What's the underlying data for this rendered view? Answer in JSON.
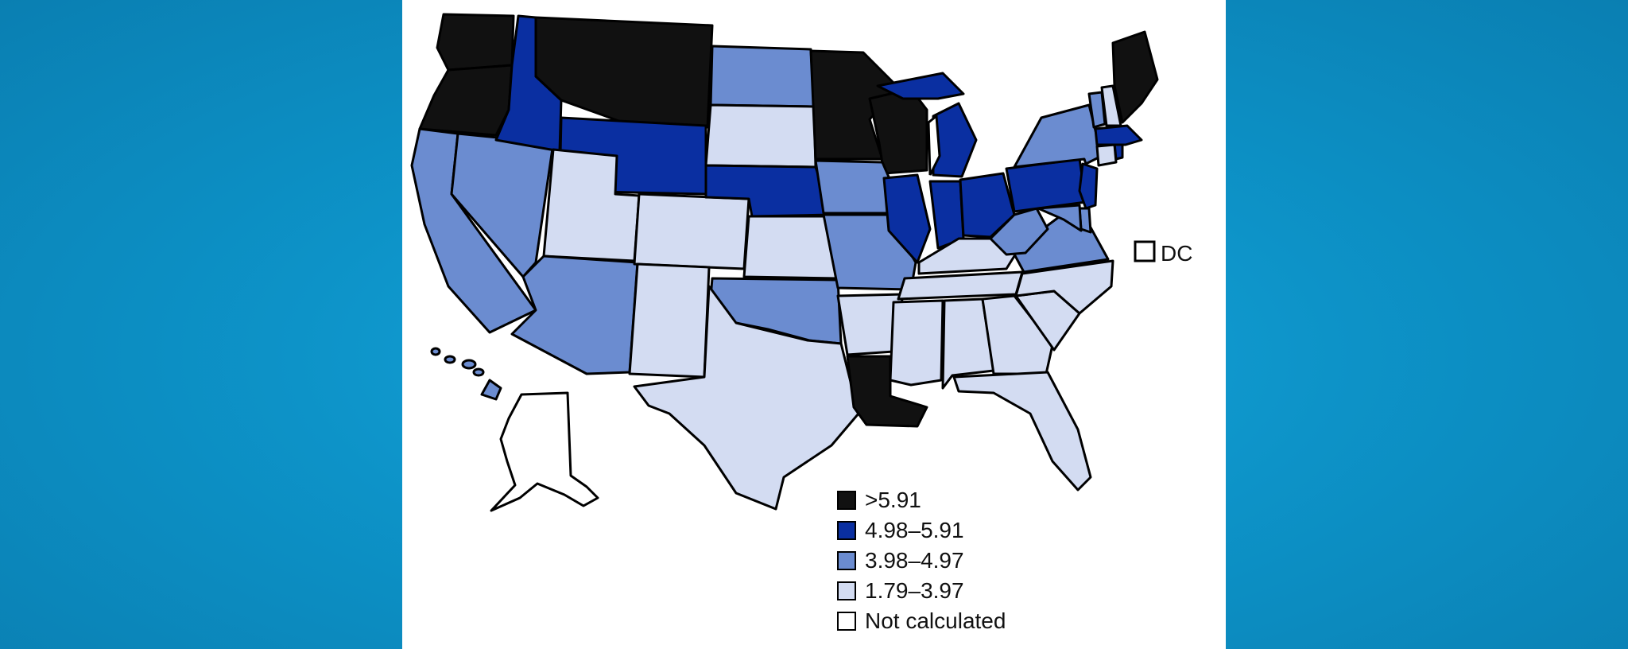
{
  "map": {
    "legend": [
      {
        "id": "c5",
        "label": ">5.91",
        "color": "#111111"
      },
      {
        "id": "c4",
        "label": "4.98–5.91",
        "color": "#0a2fa1"
      },
      {
        "id": "c3",
        "label": "3.98–4.97",
        "color": "#6b8cd0"
      },
      {
        "id": "c2",
        "label": "1.79–3.97",
        "color": "#d3dcf2"
      },
      {
        "id": "c1",
        "label": "Not calculated",
        "color": "#ffffff"
      }
    ],
    "dc_label": "DC",
    "states": {
      "WA": "c5",
      "OR": "c5",
      "MT": "c5",
      "MN": "c5",
      "WI": "c5",
      "ME": "c5",
      "LA": "c5",
      "ID": "c4",
      "WY": "c4",
      "NE": "c4",
      "IL": "c4",
      "IN": "c4",
      "OH": "c4",
      "MI": "c4",
      "PA": "c4",
      "NJ": "c4",
      "MA": "c4",
      "RI": "c4",
      "CA": "c3",
      "NV": "c3",
      "AZ": "c3",
      "ND": "c3",
      "IA": "c3",
      "MO": "c3",
      "OK": "c3",
      "NY": "c3",
      "WV": "c3",
      "VA": "c3",
      "VT": "c3",
      "DE": "c3",
      "MD": "c3",
      "HI": "c3",
      "UT": "c2",
      "CO": "c2",
      "NM": "c2",
      "SD": "c2",
      "KS": "c2",
      "TX": "c2",
      "AR": "c2",
      "MS": "c2",
      "AL": "c2",
      "GA": "c2",
      "FL": "c2",
      "SC": "c2",
      "NC": "c2",
      "TN": "c2",
      "KY": "c2",
      "NH": "c2",
      "CT": "c2",
      "AK": "c1",
      "DC": "c1"
    }
  }
}
